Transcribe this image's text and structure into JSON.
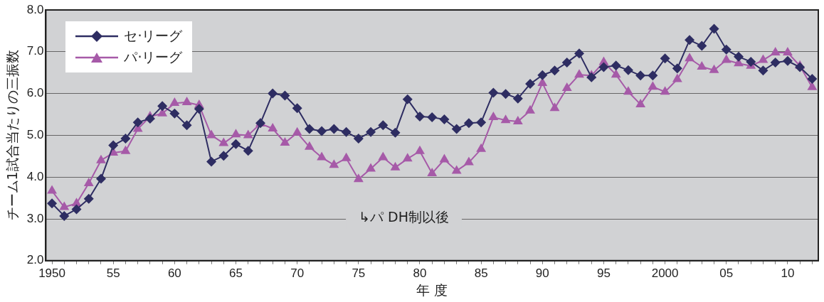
{
  "chart_data": {
    "type": "line",
    "xlabel": "年 度",
    "ylabel": "チーム1試合当たりの三振数",
    "x": [
      1950,
      1951,
      1952,
      1953,
      1954,
      1955,
      1956,
      1957,
      1958,
      1959,
      1960,
      1961,
      1962,
      1963,
      1964,
      1965,
      1966,
      1967,
      1968,
      1969,
      1970,
      1971,
      1972,
      1973,
      1974,
      1975,
      1976,
      1977,
      1978,
      1979,
      1980,
      1981,
      1982,
      1983,
      1984,
      1985,
      1986,
      1987,
      1988,
      1989,
      1990,
      1991,
      1992,
      1993,
      1994,
      1995,
      1996,
      1997,
      1998,
      1999,
      2000,
      2001,
      2002,
      2003,
      2004,
      2005,
      2006,
      2007,
      2008,
      2009,
      2010,
      2011,
      2012
    ],
    "series": [
      {
        "name": "セ·リーグ",
        "color": "#2e2d62",
        "marker": "diamond",
        "values": [
          3.37,
          3.07,
          3.23,
          3.48,
          3.96,
          4.76,
          4.92,
          5.31,
          5.4,
          5.7,
          5.52,
          5.24,
          5.63,
          4.37,
          4.51,
          4.79,
          4.63,
          5.29,
          6.0,
          5.95,
          5.65,
          5.15,
          5.1,
          5.15,
          5.08,
          4.92,
          5.08,
          5.24,
          5.06,
          5.86,
          5.45,
          5.43,
          5.38,
          5.15,
          5.29,
          5.31,
          6.02,
          5.99,
          5.88,
          6.23,
          6.44,
          6.55,
          6.74,
          6.96,
          6.39,
          6.63,
          6.67,
          6.56,
          6.43,
          6.43,
          6.84,
          6.6,
          7.28,
          7.14,
          7.55,
          7.05,
          6.88,
          6.76,
          6.55,
          6.74,
          6.78,
          6.63,
          6.35
        ]
      },
      {
        "name": "パ·リーグ",
        "color": "#a65aa8",
        "marker": "triangle",
        "values": [
          3.67,
          3.28,
          3.37,
          3.85,
          4.4,
          4.58,
          4.62,
          5.15,
          5.45,
          5.52,
          5.77,
          5.79,
          5.72,
          5.0,
          4.81,
          5.02,
          5.0,
          5.28,
          5.16,
          4.82,
          5.06,
          4.72,
          4.47,
          4.29,
          4.45,
          3.95,
          4.2,
          4.47,
          4.23,
          4.44,
          4.62,
          4.09,
          4.42,
          4.15,
          4.35,
          4.67,
          5.43,
          5.36,
          5.33,
          5.59,
          6.25,
          5.65,
          6.13,
          6.45,
          6.43,
          6.75,
          6.45,
          6.04,
          5.74,
          6.16,
          6.04,
          6.34,
          6.84,
          6.64,
          6.56,
          6.8,
          6.72,
          6.66,
          6.8,
          6.98,
          6.98,
          6.66,
          6.15
        ]
      }
    ],
    "xlim": [
      1949.5,
      2012.5
    ],
    "xticks": [
      {
        "value": 1950,
        "label": "1950"
      },
      {
        "value": 1951,
        "label": null
      },
      {
        "value": 1952,
        "label": null
      },
      {
        "value": 1953,
        "label": null
      },
      {
        "value": 1954,
        "label": null
      },
      {
        "value": 1955,
        "label": "55"
      },
      {
        "value": 1956,
        "label": null
      },
      {
        "value": 1957,
        "label": null
      },
      {
        "value": 1958,
        "label": null
      },
      {
        "value": 1959,
        "label": null
      },
      {
        "value": 1960,
        "label": "60"
      },
      {
        "value": 1961,
        "label": null
      },
      {
        "value": 1962,
        "label": null
      },
      {
        "value": 1963,
        "label": null
      },
      {
        "value": 1964,
        "label": null
      },
      {
        "value": 1965,
        "label": "65"
      },
      {
        "value": 1966,
        "label": null
      },
      {
        "value": 1967,
        "label": null
      },
      {
        "value": 1968,
        "label": null
      },
      {
        "value": 1969,
        "label": null
      },
      {
        "value": 1970,
        "label": "70"
      },
      {
        "value": 1971,
        "label": null
      },
      {
        "value": 1972,
        "label": null
      },
      {
        "value": 1973,
        "label": null
      },
      {
        "value": 1974,
        "label": null
      },
      {
        "value": 1975,
        "label": "75"
      },
      {
        "value": 1976,
        "label": null
      },
      {
        "value": 1977,
        "label": null
      },
      {
        "value": 1978,
        "label": null
      },
      {
        "value": 1979,
        "label": null
      },
      {
        "value": 1980,
        "label": "80"
      },
      {
        "value": 1981,
        "label": null
      },
      {
        "value": 1982,
        "label": null
      },
      {
        "value": 1983,
        "label": null
      },
      {
        "value": 1984,
        "label": null
      },
      {
        "value": 1985,
        "label": "85"
      },
      {
        "value": 1986,
        "label": null
      },
      {
        "value": 1987,
        "label": null
      },
      {
        "value": 1988,
        "label": null
      },
      {
        "value": 1989,
        "label": null
      },
      {
        "value": 1990,
        "label": "90"
      },
      {
        "value": 1991,
        "label": null
      },
      {
        "value": 1992,
        "label": null
      },
      {
        "value": 1993,
        "label": null
      },
      {
        "value": 1994,
        "label": null
      },
      {
        "value": 1995,
        "label": "95"
      },
      {
        "value": 1996,
        "label": null
      },
      {
        "value": 1997,
        "label": null
      },
      {
        "value": 1998,
        "label": null
      },
      {
        "value": 1999,
        "label": null
      },
      {
        "value": 2000,
        "label": "2000"
      },
      {
        "value": 2001,
        "label": null
      },
      {
        "value": 2002,
        "label": null
      },
      {
        "value": 2003,
        "label": null
      },
      {
        "value": 2004,
        "label": null
      },
      {
        "value": 2005,
        "label": "05"
      },
      {
        "value": 2006,
        "label": null
      },
      {
        "value": 2007,
        "label": null
      },
      {
        "value": 2008,
        "label": null
      },
      {
        "value": 2009,
        "label": null
      },
      {
        "value": 2010,
        "label": "10"
      },
      {
        "value": 2011,
        "label": null
      },
      {
        "value": 2012,
        "label": null
      }
    ],
    "ylim": [
      2,
      8
    ],
    "yticks": [
      {
        "value": 2,
        "label": "2.0"
      },
      {
        "value": 3,
        "label": "3.0"
      },
      {
        "value": 4,
        "label": "4.0"
      },
      {
        "value": 5,
        "label": "5.0"
      },
      {
        "value": 6,
        "label": "6.0"
      },
      {
        "value": 7,
        "label": "7.0"
      },
      {
        "value": 8,
        "label": "8.0"
      }
    ],
    "grid": "y",
    "legend": "top left",
    "line_style": "solid",
    "annotations": [
      "↳パ DH制以後"
    ]
  }
}
